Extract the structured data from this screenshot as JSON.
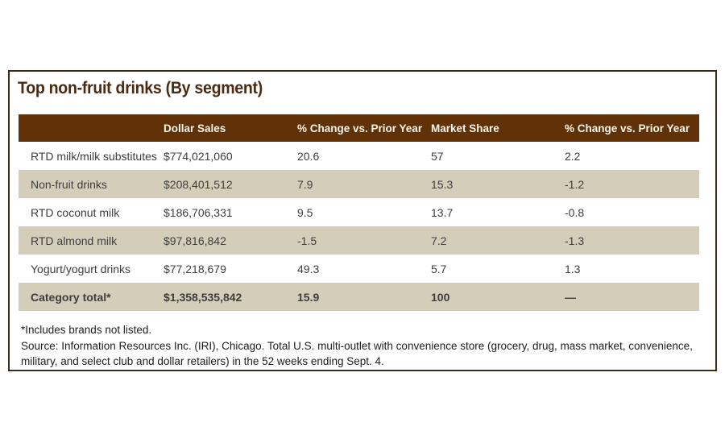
{
  "panel": {
    "title": "Top non-fruit drinks (By segment)",
    "footnote": "*Includes brands not listed.",
    "source": "Source: Information Resources Inc. (IRI), Chicago. Total U.S. multi-outlet with convenience store (grocery, drug, mass market, convenience, military, and select club and dollar retailers) in the 52 weeks ending Sept. 4."
  },
  "chart_data": {
    "type": "table",
    "title": "Top non-fruit drinks (By segment)",
    "columns": [
      "",
      "Dollar Sales",
      "% Change vs. Prior Year",
      "Market Share",
      "% Change vs. Prior Year"
    ],
    "rows": [
      {
        "cells": [
          "RTD milk/milk substitutes",
          "$774,021,060",
          "20.6",
          "57",
          "2.2"
        ],
        "emphasis": false
      },
      {
        "cells": [
          "Non-fruit drinks",
          "$208,401,512",
          "7.9",
          "15.3",
          "-1.2"
        ],
        "emphasis": false
      },
      {
        "cells": [
          "RTD coconut milk",
          "$186,706,331",
          "9.5",
          "13.7",
          "-0.8"
        ],
        "emphasis": false
      },
      {
        "cells": [
          "RTD almond milk",
          "$97,816,842",
          "-1.5",
          "7.2",
          "-1.3"
        ],
        "emphasis": false
      },
      {
        "cells": [
          "Yogurt/yogurt drinks",
          "$77,218,679",
          "49.3",
          "5.7",
          "1.3"
        ],
        "emphasis": false
      },
      {
        "cells": [
          "Category total*",
          "$1,358,535,842",
          "15.9",
          "100",
          "—"
        ],
        "emphasis": true
      }
    ],
    "layout_hints": {
      "striping": "alternate rows tan",
      "header": "dark brown with white bold text",
      "total_row": "bold, tan background"
    }
  },
  "colors": {
    "header_bg": "#613208",
    "header_text": "#faf5ea",
    "row_alt_bg": "#d4cdba",
    "title_text": "#4b2a10",
    "panel_border": "#3b2a19",
    "body_text": "#3e3e3e",
    "note_text": "#1d1d1d"
  }
}
